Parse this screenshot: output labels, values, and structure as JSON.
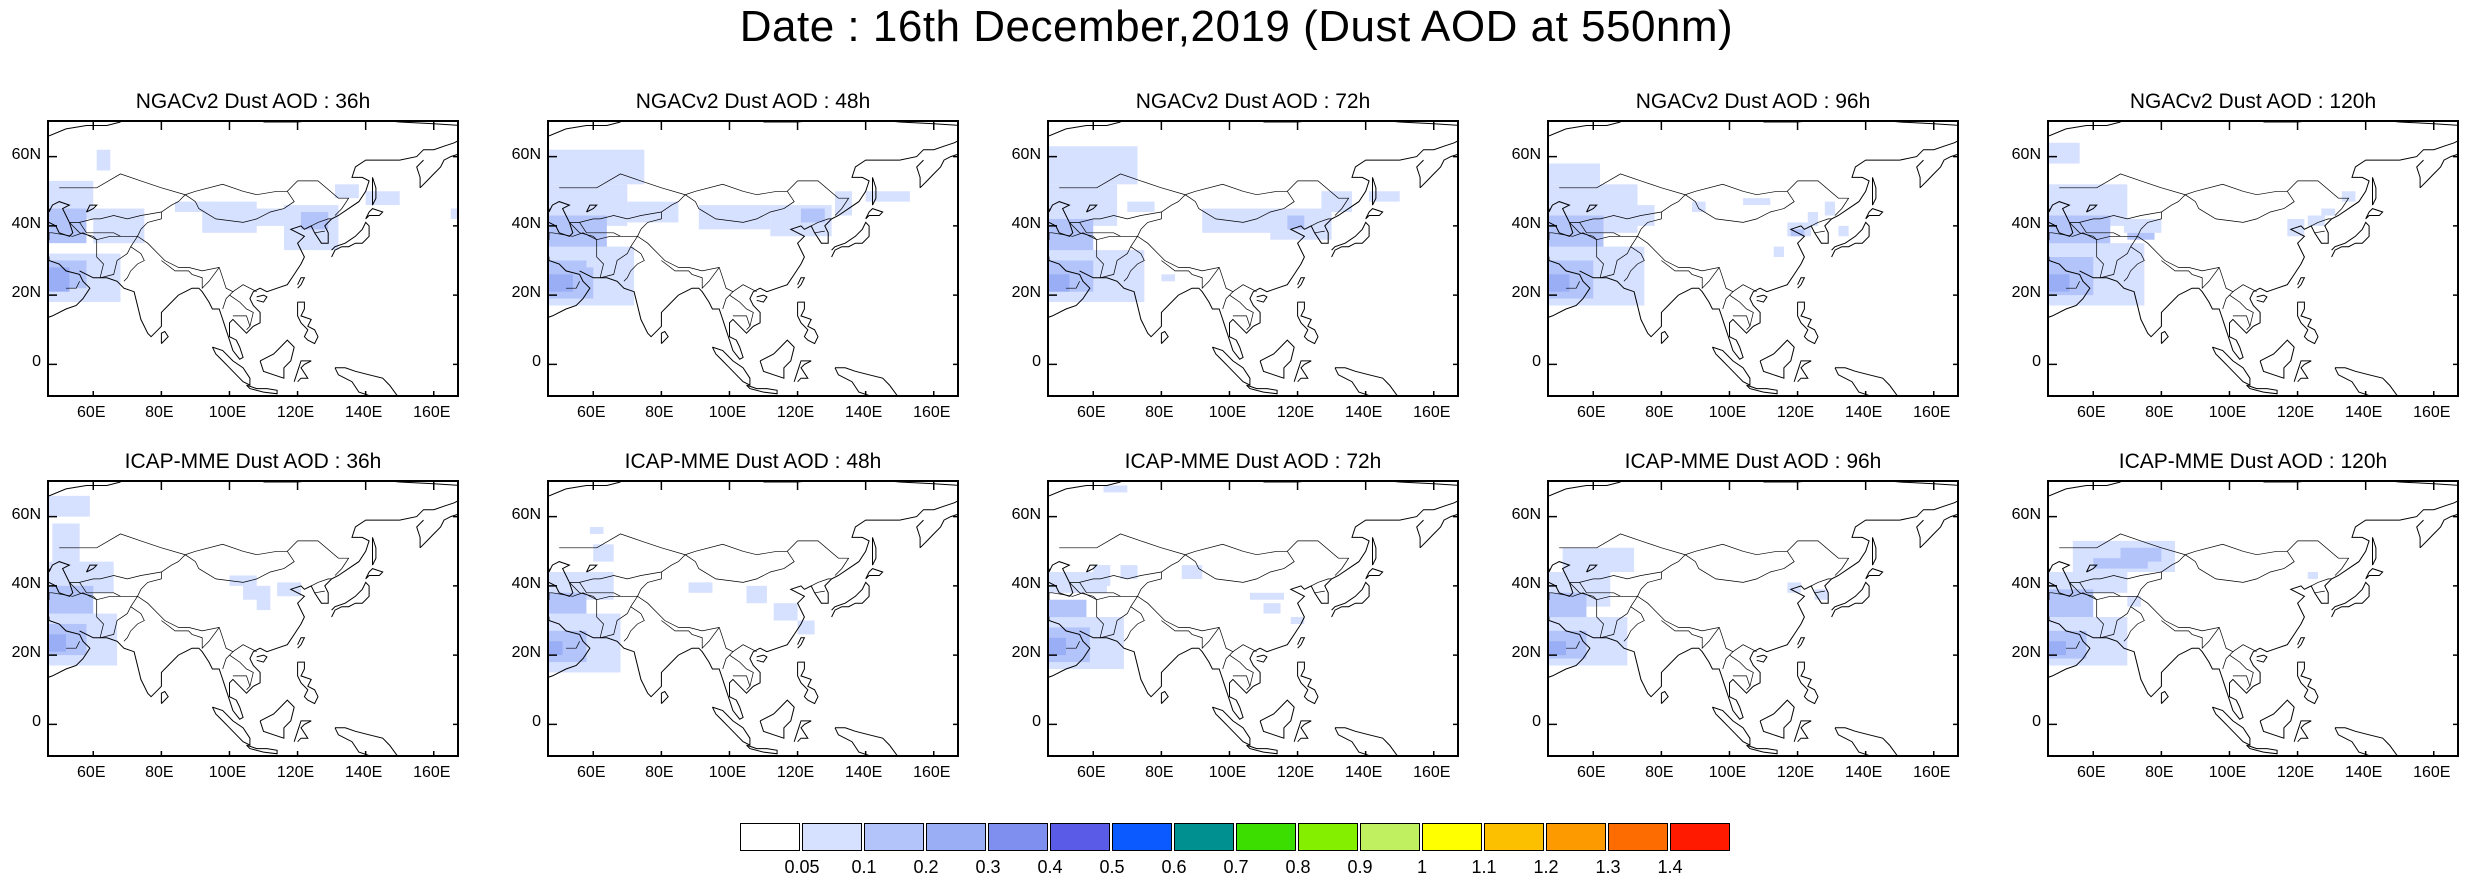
{
  "title": "Date : 16th December,2019 (Dust AOD at 550nm)",
  "panels": [
    {
      "title": "NGACv2 Dust AOD : 36h"
    },
    {
      "title": "NGACv2 Dust AOD : 48h"
    },
    {
      "title": "NGACv2 Dust AOD : 72h"
    },
    {
      "title": "NGACv2 Dust AOD : 96h"
    },
    {
      "title": "NGACv2 Dust AOD : 120h"
    },
    {
      "title": "ICAP-MME Dust AOD : 36h"
    },
    {
      "title": "ICAP-MME Dust AOD : 48h"
    },
    {
      "title": "ICAP-MME Dust AOD : 72h"
    },
    {
      "title": "ICAP-MME Dust AOD : 96h"
    },
    {
      "title": "ICAP-MME Dust AOD : 120h"
    }
  ],
  "axes": {
    "lon_labels": [
      "60E",
      "80E",
      "100E",
      "120E",
      "140E",
      "160E"
    ],
    "lat_labels": [
      "60N",
      "40N",
      "20N",
      "0"
    ]
  },
  "colorbar": {
    "labels": [
      "0.05",
      "0.1",
      "0.2",
      "0.3",
      "0.4",
      "0.5",
      "0.6",
      "0.7",
      "0.8",
      "0.9",
      "1",
      "1.1",
      "1.2",
      "1.3",
      "1.4"
    ],
    "colors": [
      "#ffffff",
      "#d6e0ff",
      "#b3c4fa",
      "#99aef5",
      "#7f8ff0",
      "#5a5ce8",
      "#0a5aff",
      "#00908f",
      "#3cde00",
      "#84f000",
      "#c0f060",
      "#ffff00",
      "#fcc000",
      "#fc9a00",
      "#fc6c00",
      "#ff1a00"
    ]
  },
  "map_style": {
    "coast_color": "#000000",
    "dust_light": "#d6e0ff",
    "dust_mid": "#b3c4fa",
    "dust_dark": "#99aef5"
  }
}
